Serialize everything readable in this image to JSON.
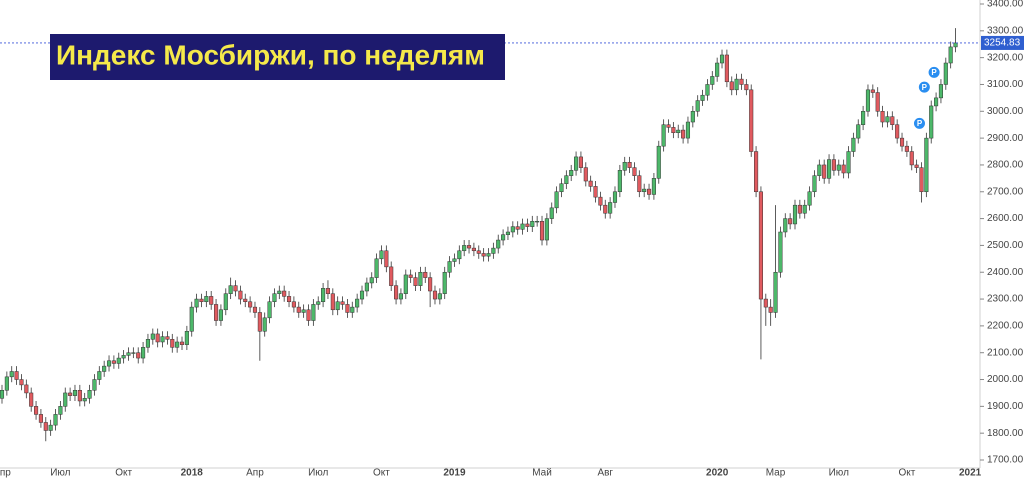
{
  "chart_data": {
    "type": "candlestick",
    "title": "Индекс Мосбиржи, по неделям",
    "up_color": "#4db86a",
    "down_color": "#e05a5f",
    "categories": [
      "Апр",
      null,
      null,
      null,
      null,
      null,
      null,
      null,
      null,
      null,
      null,
      null,
      "Июл",
      null,
      null,
      null,
      null,
      null,
      null,
      null,
      null,
      null,
      null,
      null,
      null,
      "Окт",
      null,
      null,
      null,
      null,
      null,
      null,
      null,
      null,
      null,
      null,
      null,
      null,
      null,
      "2018",
      null,
      null,
      null,
      null,
      null,
      null,
      null,
      null,
      null,
      null,
      null,
      null,
      "Апр",
      null,
      null,
      null,
      null,
      null,
      null,
      null,
      null,
      null,
      null,
      null,
      null,
      "Июл",
      null,
      null,
      null,
      null,
      null,
      null,
      null,
      null,
      null,
      null,
      null,
      null,
      "Окт",
      null,
      null,
      null,
      null,
      null,
      null,
      null,
      null,
      null,
      null,
      null,
      null,
      null,
      null,
      "2019",
      null,
      null,
      null,
      null,
      null,
      null,
      null,
      null,
      null,
      null,
      null,
      null,
      null,
      null,
      null,
      null,
      null,
      "Май",
      null,
      null,
      null,
      null,
      null,
      null,
      null,
      null,
      null,
      null,
      null,
      null,
      "Авг",
      null,
      null,
      null,
      null,
      null,
      null,
      null,
      null,
      null,
      null,
      null,
      null,
      null,
      null,
      null,
      null,
      null,
      null,
      null,
      null,
      null,
      null,
      "2020",
      null,
      null,
      null,
      null,
      null,
      null,
      null,
      null,
      null,
      null,
      null,
      "Мар",
      null,
      null,
      null,
      null,
      null,
      null,
      null,
      null,
      null,
      null,
      null,
      null,
      "Июл",
      null,
      null,
      null,
      null,
      null,
      null,
      null,
      null,
      null,
      null,
      null,
      null,
      null,
      "Окт",
      null,
      null,
      null,
      null,
      null,
      null,
      null,
      null,
      null,
      null,
      null,
      null,
      "2021"
    ],
    "candles": [
      [
        1930,
        1980,
        1910,
        1960
      ],
      [
        1960,
        2030,
        1940,
        2010
      ],
      [
        2010,
        2050,
        1990,
        2030
      ],
      [
        2030,
        2050,
        1980,
        2000
      ],
      [
        2000,
        2020,
        1960,
        1980
      ],
      [
        1980,
        2000,
        1930,
        1950
      ],
      [
        1950,
        1970,
        1880,
        1900
      ],
      [
        1900,
        1920,
        1850,
        1870
      ],
      [
        1870,
        1890,
        1820,
        1840
      ],
      [
        1840,
        1860,
        1770,
        1810
      ],
      [
        1810,
        1850,
        1790,
        1830
      ],
      [
        1830,
        1890,
        1810,
        1870
      ],
      [
        1870,
        1920,
        1850,
        1900
      ],
      [
        1900,
        1970,
        1880,
        1950
      ],
      [
        1950,
        1970,
        1920,
        1940
      ],
      [
        1940,
        1980,
        1920,
        1960
      ],
      [
        1960,
        1980,
        1900,
        1920
      ],
      [
        1920,
        1950,
        1900,
        1930
      ],
      [
        1930,
        1980,
        1910,
        1960
      ],
      [
        1960,
        2020,
        1940,
        2000
      ],
      [
        2000,
        2050,
        1980,
        2030
      ],
      [
        2030,
        2070,
        2010,
        2050
      ],
      [
        2050,
        2090,
        2030,
        2070
      ],
      [
        2070,
        2090,
        2040,
        2060
      ],
      [
        2060,
        2100,
        2040,
        2080
      ],
      [
        2080,
        2110,
        2060,
        2090
      ],
      [
        2090,
        2120,
        2070,
        2100
      ],
      [
        2100,
        2120,
        2080,
        2100
      ],
      [
        2100,
        2120,
        2060,
        2080
      ],
      [
        2080,
        2140,
        2060,
        2120
      ],
      [
        2120,
        2170,
        2100,
        2150
      ],
      [
        2150,
        2190,
        2130,
        2170
      ],
      [
        2170,
        2190,
        2120,
        2140
      ],
      [
        2140,
        2180,
        2120,
        2160
      ],
      [
        2160,
        2180,
        2130,
        2150
      ],
      [
        2150,
        2170,
        2100,
        2120
      ],
      [
        2120,
        2160,
        2100,
        2140
      ],
      [
        2140,
        2160,
        2110,
        2130
      ],
      [
        2130,
        2200,
        2110,
        2180
      ],
      [
        2180,
        2290,
        2160,
        2270
      ],
      [
        2270,
        2320,
        2250,
        2300
      ],
      [
        2300,
        2320,
        2270,
        2290
      ],
      [
        2290,
        2330,
        2270,
        2310
      ],
      [
        2310,
        2330,
        2260,
        2280
      ],
      [
        2280,
        2300,
        2200,
        2220
      ],
      [
        2220,
        2280,
        2200,
        2260
      ],
      [
        2260,
        2340,
        2240,
        2320
      ],
      [
        2320,
        2380,
        2300,
        2350
      ],
      [
        2350,
        2370,
        2310,
        2330
      ],
      [
        2330,
        2350,
        2280,
        2300
      ],
      [
        2300,
        2320,
        2270,
        2290
      ],
      [
        2290,
        2310,
        2250,
        2270
      ],
      [
        2270,
        2290,
        2230,
        2250
      ],
      [
        2250,
        2270,
        2070,
        2180
      ],
      [
        2180,
        2250,
        2160,
        2230
      ],
      [
        2230,
        2310,
        2210,
        2290
      ],
      [
        2290,
        2340,
        2270,
        2320
      ],
      [
        2320,
        2350,
        2300,
        2330
      ],
      [
        2330,
        2350,
        2290,
        2310
      ],
      [
        2310,
        2330,
        2270,
        2290
      ],
      [
        2290,
        2310,
        2250,
        2270
      ],
      [
        2270,
        2290,
        2230,
        2250
      ],
      [
        2250,
        2280,
        2230,
        2260
      ],
      [
        2260,
        2280,
        2200,
        2220
      ],
      [
        2220,
        2300,
        2200,
        2280
      ],
      [
        2280,
        2310,
        2260,
        2290
      ],
      [
        2290,
        2360,
        2270,
        2340
      ],
      [
        2340,
        2370,
        2300,
        2320
      ],
      [
        2320,
        2340,
        2240,
        2260
      ],
      [
        2260,
        2310,
        2240,
        2290
      ],
      [
        2290,
        2310,
        2260,
        2280
      ],
      [
        2280,
        2300,
        2230,
        2250
      ],
      [
        2250,
        2290,
        2230,
        2270
      ],
      [
        2270,
        2320,
        2250,
        2300
      ],
      [
        2300,
        2350,
        2280,
        2330
      ],
      [
        2330,
        2380,
        2310,
        2360
      ],
      [
        2360,
        2400,
        2340,
        2380
      ],
      [
        2380,
        2470,
        2360,
        2450
      ],
      [
        2450,
        2500,
        2430,
        2480
      ],
      [
        2480,
        2500,
        2400,
        2420
      ],
      [
        2420,
        2440,
        2330,
        2350
      ],
      [
        2350,
        2370,
        2280,
        2300
      ],
      [
        2300,
        2340,
        2280,
        2320
      ],
      [
        2320,
        2410,
        2300,
        2390
      ],
      [
        2390,
        2410,
        2360,
        2380
      ],
      [
        2380,
        2400,
        2330,
        2350
      ],
      [
        2350,
        2420,
        2330,
        2400
      ],
      [
        2400,
        2420,
        2360,
        2380
      ],
      [
        2380,
        2400,
        2270,
        2330
      ],
      [
        2330,
        2350,
        2280,
        2300
      ],
      [
        2300,
        2340,
        2280,
        2320
      ],
      [
        2320,
        2420,
        2300,
        2400
      ],
      [
        2400,
        2460,
        2380,
        2440
      ],
      [
        2440,
        2470,
        2420,
        2450
      ],
      [
        2450,
        2500,
        2430,
        2480
      ],
      [
        2480,
        2520,
        2460,
        2500
      ],
      [
        2500,
        2520,
        2470,
        2490
      ],
      [
        2490,
        2510,
        2460,
        2480
      ],
      [
        2480,
        2500,
        2450,
        2470
      ],
      [
        2470,
        2490,
        2440,
        2460
      ],
      [
        2460,
        2490,
        2440,
        2470
      ],
      [
        2470,
        2510,
        2450,
        2490
      ],
      [
        2490,
        2540,
        2470,
        2520
      ],
      [
        2520,
        2560,
        2500,
        2540
      ],
      [
        2540,
        2570,
        2520,
        2550
      ],
      [
        2550,
        2590,
        2530,
        2570
      ],
      [
        2570,
        2590,
        2540,
        2560
      ],
      [
        2560,
        2600,
        2540,
        2580
      ],
      [
        2580,
        2600,
        2550,
        2570
      ],
      [
        2570,
        2610,
        2550,
        2590
      ],
      [
        2590,
        2610,
        2570,
        2590
      ],
      [
        2590,
        2610,
        2500,
        2520
      ],
      [
        2520,
        2620,
        2500,
        2600
      ],
      [
        2600,
        2660,
        2580,
        2640
      ],
      [
        2640,
        2720,
        2620,
        2700
      ],
      [
        2700,
        2750,
        2680,
        2730
      ],
      [
        2730,
        2780,
        2710,
        2760
      ],
      [
        2760,
        2800,
        2740,
        2780
      ],
      [
        2780,
        2850,
        2760,
        2830
      ],
      [
        2830,
        2850,
        2770,
        2790
      ],
      [
        2790,
        2810,
        2720,
        2740
      ],
      [
        2740,
        2760,
        2700,
        2720
      ],
      [
        2720,
        2740,
        2660,
        2680
      ],
      [
        2680,
        2700,
        2630,
        2650
      ],
      [
        2650,
        2670,
        2600,
        2620
      ],
      [
        2620,
        2680,
        2600,
        2660
      ],
      [
        2660,
        2720,
        2640,
        2700
      ],
      [
        2700,
        2800,
        2680,
        2780
      ],
      [
        2780,
        2830,
        2760,
        2810
      ],
      [
        2810,
        2830,
        2770,
        2790
      ],
      [
        2790,
        2810,
        2740,
        2760
      ],
      [
        2760,
        2780,
        2680,
        2700
      ],
      [
        2700,
        2730,
        2680,
        2710
      ],
      [
        2710,
        2730,
        2670,
        2690
      ],
      [
        2690,
        2770,
        2670,
        2750
      ],
      [
        2750,
        2890,
        2730,
        2870
      ],
      [
        2870,
        2970,
        2850,
        2950
      ],
      [
        2950,
        2970,
        2920,
        2940
      ],
      [
        2940,
        2960,
        2900,
        2920
      ],
      [
        2920,
        2950,
        2900,
        2930
      ],
      [
        2930,
        2950,
        2880,
        2900
      ],
      [
        2900,
        2980,
        2880,
        2960
      ],
      [
        2960,
        3020,
        2940,
        3000
      ],
      [
        3000,
        3060,
        2980,
        3040
      ],
      [
        3040,
        3080,
        3020,
        3060
      ],
      [
        3060,
        3120,
        3040,
        3100
      ],
      [
        3100,
        3150,
        3080,
        3130
      ],
      [
        3130,
        3200,
        3110,
        3180
      ],
      [
        3180,
        3230,
        3160,
        3210
      ],
      [
        3210,
        3230,
        3090,
        3110
      ],
      [
        3110,
        3130,
        3060,
        3080
      ],
      [
        3080,
        3140,
        3060,
        3120
      ],
      [
        3120,
        3140,
        3080,
        3100
      ],
      [
        3100,
        3120,
        3060,
        3080
      ],
      [
        3080,
        3100,
        2830,
        2850
      ],
      [
        2850,
        2870,
        2680,
        2700
      ],
      [
        2700,
        2720,
        2075,
        2300
      ],
      [
        2300,
        2320,
        2200,
        2270
      ],
      [
        2270,
        2300,
        2200,
        2250
      ],
      [
        2250,
        2650,
        2230,
        2400
      ],
      [
        2400,
        2570,
        2380,
        2550
      ],
      [
        2550,
        2620,
        2530,
        2600
      ],
      [
        2600,
        2620,
        2560,
        2580
      ],
      [
        2580,
        2670,
        2560,
        2650
      ],
      [
        2650,
        2670,
        2600,
        2620
      ],
      [
        2620,
        2670,
        2600,
        2650
      ],
      [
        2650,
        2720,
        2630,
        2700
      ],
      [
        2700,
        2780,
        2680,
        2760
      ],
      [
        2760,
        2820,
        2740,
        2800
      ],
      [
        2800,
        2820,
        2730,
        2750
      ],
      [
        2750,
        2840,
        2730,
        2820
      ],
      [
        2820,
        2840,
        2760,
        2780
      ],
      [
        2780,
        2820,
        2760,
        2800
      ],
      [
        2800,
        2820,
        2750,
        2770
      ],
      [
        2770,
        2870,
        2750,
        2850
      ],
      [
        2850,
        2920,
        2830,
        2900
      ],
      [
        2900,
        2970,
        2880,
        2950
      ],
      [
        2950,
        3020,
        2930,
        3000
      ],
      [
        3000,
        3100,
        2980,
        3080
      ],
      [
        3080,
        3100,
        3050,
        3070
      ],
      [
        3070,
        3090,
        2980,
        3000
      ],
      [
        3000,
        3020,
        2940,
        2960
      ],
      [
        2960,
        3000,
        2940,
        2980
      ],
      [
        2980,
        3000,
        2930,
        2950
      ],
      [
        2950,
        2970,
        2880,
        2900
      ],
      [
        2900,
        2920,
        2850,
        2870
      ],
      [
        2870,
        2890,
        2830,
        2850
      ],
      [
        2850,
        2870,
        2780,
        2800
      ],
      [
        2800,
        2820,
        2770,
        2790
      ],
      [
        2790,
        2810,
        2660,
        2700
      ],
      [
        2700,
        2920,
        2680,
        2900
      ],
      [
        2900,
        3040,
        2880,
        3020
      ],
      [
        3020,
        3070,
        3000,
        3050
      ],
      [
        3050,
        3120,
        3030,
        3100
      ],
      [
        3100,
        3200,
        3080,
        3180
      ],
      [
        3180,
        3260,
        3160,
        3240
      ],
      [
        3240,
        3310,
        3220,
        3254.83
      ],
      null,
      null,
      null
    ],
    "markers": [
      "P",
      "P",
      "P"
    ],
    "last_price": {
      "value": 3254.83,
      "label": "3254.83"
    },
    "ylim": [
      1700,
      3400
    ],
    "yticks": [
      {
        "value": 1700,
        "label": "1700.00"
      },
      {
        "value": 1800,
        "label": "1800.00"
      },
      {
        "value": 1900,
        "label": "1900.00"
      },
      {
        "value": 2000,
        "label": "2000.00"
      },
      {
        "value": 2100,
        "label": "2100.00"
      },
      {
        "value": 2200,
        "label": "2200.00"
      },
      {
        "value": 2300,
        "label": "2300.00"
      },
      {
        "value": 2400,
        "label": "2400.00"
      },
      {
        "value": 2500,
        "label": "2500.00"
      },
      {
        "value": 2600,
        "label": "2600.00"
      },
      {
        "value": 2700,
        "label": "2700.00"
      },
      {
        "value": 2800,
        "label": "2800.00"
      },
      {
        "value": 2900,
        "label": "2900.00"
      },
      {
        "value": 3000,
        "label": "3000.00"
      },
      {
        "value": 3100,
        "label": "3100.00"
      },
      {
        "value": 3200,
        "label": "3200.00"
      },
      {
        "value": 3300,
        "label": "3300.00"
      },
      {
        "value": 3400,
        "label": "3400.00"
      }
    ]
  }
}
